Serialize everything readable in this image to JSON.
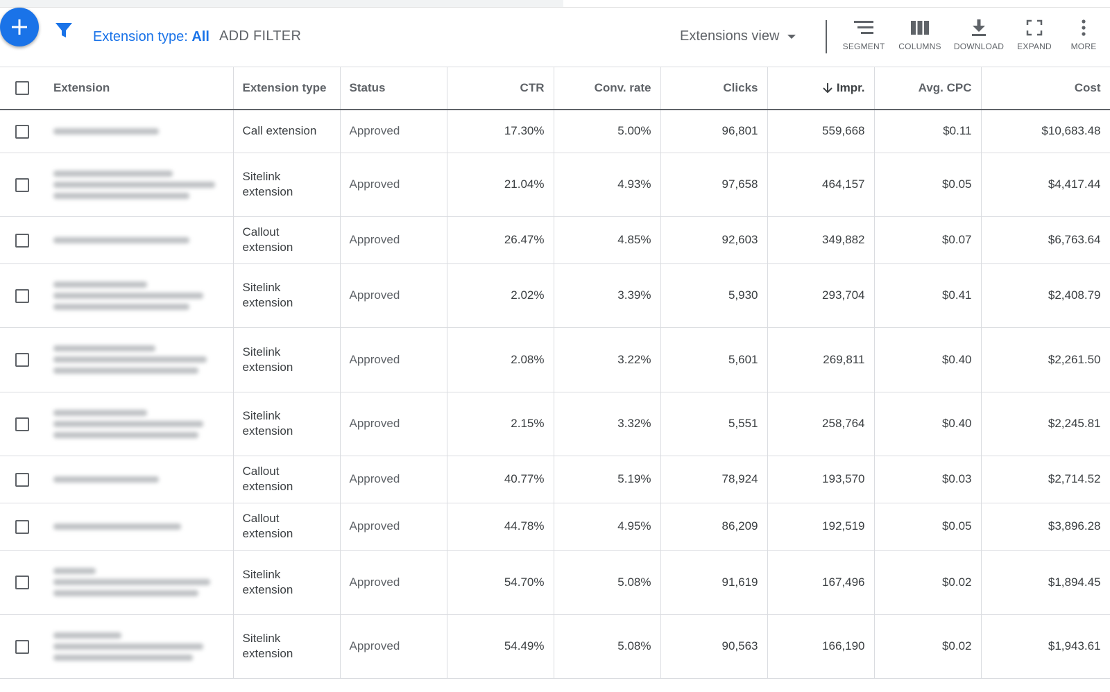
{
  "toolbar": {
    "add_icon": "plus-icon",
    "filter_icon": "filter-icon",
    "extension_type_label": "Extension type:",
    "extension_type_value": "All",
    "add_filter_label": "ADD FILTER",
    "view_label": "Extensions view",
    "buttons": [
      {
        "icon": "segment-icon",
        "label": "SEGMENT"
      },
      {
        "icon": "columns-icon",
        "label": "COLUMNS"
      },
      {
        "icon": "download-icon",
        "label": "DOWNLOAD"
      },
      {
        "icon": "expand-icon",
        "label": "EXPAND"
      },
      {
        "icon": "more-vert-icon",
        "label": "MORE"
      }
    ]
  },
  "table": {
    "headers": [
      "Extension",
      "Extension type",
      "Status",
      "CTR",
      "Conv. rate",
      "Clicks",
      "Impr.",
      "Avg. CPC",
      "Cost"
    ],
    "sorted_column": "Impr.",
    "sort_direction": "descending",
    "rows": [
      {
        "type": "Call extension",
        "status": "Approved",
        "ctr": "17.30%",
        "conv_rate": "5.00%",
        "clicks": "96,801",
        "impr": "559,668",
        "avg_cpc": "$0.11",
        "cost": "$10,683.48"
      },
      {
        "type": "Sitelink extension",
        "status": "Approved",
        "ctr": "21.04%",
        "conv_rate": "4.93%",
        "clicks": "97,658",
        "impr": "464,157",
        "avg_cpc": "$0.05",
        "cost": "$4,417.44"
      },
      {
        "type": "Callout extension",
        "status": "Approved",
        "ctr": "26.47%",
        "conv_rate": "4.85%",
        "clicks": "92,603",
        "impr": "349,882",
        "avg_cpc": "$0.07",
        "cost": "$6,763.64"
      },
      {
        "type": "Sitelink extension",
        "status": "Approved",
        "ctr": "2.02%",
        "conv_rate": "3.39%",
        "clicks": "5,930",
        "impr": "293,704",
        "avg_cpc": "$0.41",
        "cost": "$2,408.79"
      },
      {
        "type": "Sitelink extension",
        "status": "Approved",
        "ctr": "2.08%",
        "conv_rate": "3.22%",
        "clicks": "5,601",
        "impr": "269,811",
        "avg_cpc": "$0.40",
        "cost": "$2,261.50"
      },
      {
        "type": "Sitelink extension",
        "status": "Approved",
        "ctr": "2.15%",
        "conv_rate": "3.32%",
        "clicks": "5,551",
        "impr": "258,764",
        "avg_cpc": "$0.40",
        "cost": "$2,245.81"
      },
      {
        "type": "Callout extension",
        "status": "Approved",
        "ctr": "40.77%",
        "conv_rate": "5.19%",
        "clicks": "78,924",
        "impr": "193,570",
        "avg_cpc": "$0.03",
        "cost": "$2,714.52"
      },
      {
        "type": "Callout extension",
        "status": "Approved",
        "ctr": "44.78%",
        "conv_rate": "4.95%",
        "clicks": "86,209",
        "impr": "192,519",
        "avg_cpc": "$0.05",
        "cost": "$3,896.28"
      },
      {
        "type": "Sitelink extension",
        "status": "Approved",
        "ctr": "54.70%",
        "conv_rate": "5.08%",
        "clicks": "91,619",
        "impr": "167,496",
        "avg_cpc": "$0.02",
        "cost": "$1,894.45"
      },
      {
        "type": "Sitelink extension",
        "status": "Approved",
        "ctr": "54.49%",
        "conv_rate": "5.08%",
        "clicks": "90,563",
        "impr": "166,190",
        "avg_cpc": "$0.02",
        "cost": "$1,943.61"
      }
    ]
  },
  "colors": {
    "accent": "#1a73e8",
    "text": "#3c4043",
    "muted": "#5f6368",
    "border": "#dadce0"
  }
}
